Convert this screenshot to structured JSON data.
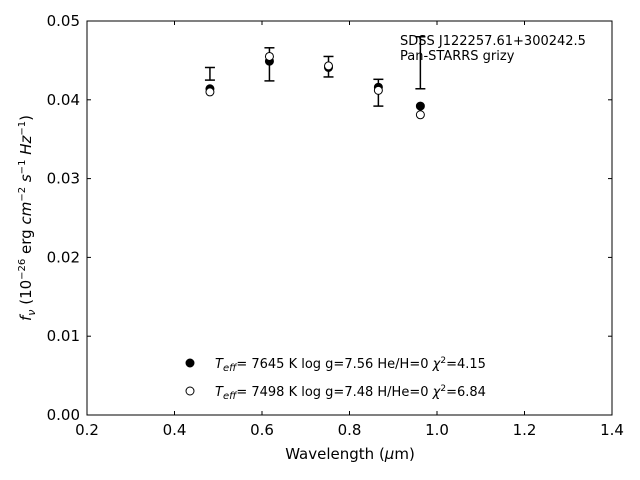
{
  "chart_data": {
    "type": "scatter",
    "title": "",
    "xlabel": "Wavelength (μm)",
    "ylabel": "f_ν (10^−26 erg cm^−2 s^−1 Hz^−1)",
    "xlim": [
      0.2,
      1.4
    ],
    "ylim": [
      0.0,
      0.05
    ],
    "xticks": [
      "0.2",
      "0.4",
      "0.6",
      "0.8",
      "1.0",
      "1.2",
      "1.4"
    ],
    "yticks": [
      "0.00",
      "0.01",
      "0.02",
      "0.03",
      "0.04",
      "0.05"
    ],
    "grid": false,
    "annotations": [
      "SDSS J122257.61+300242.5",
      "Pan-STARRS grizy"
    ],
    "observed": {
      "x": [
        0.481,
        0.617,
        0.752,
        0.866,
        0.962
      ],
      "y": [
        0.0433,
        0.0445,
        0.0442,
        0.0409,
        0.0447
      ],
      "yerr": [
        0.0008,
        0.0021,
        0.0013,
        0.0017,
        0.0033
      ]
    },
    "series": [
      {
        "name": "T_eff= 7645 K log g=7.56 He/H=0 χ²=4.15",
        "marker": "filled-circle",
        "teff": "7645",
        "logg": "7.56",
        "comp": "He/H=0",
        "chi2": "4.15",
        "x": [
          0.481,
          0.617,
          0.752,
          0.866,
          0.962
        ],
        "y": [
          0.0414,
          0.0449,
          0.0441,
          0.0416,
          0.0392
        ]
      },
      {
        "name": "T_eff= 7498 K log g=7.48 H/He=0 χ²=6.84",
        "marker": "open-circle",
        "teff": "7498",
        "logg": "7.48",
        "comp": "H/He=0",
        "chi2": "6.84",
        "x": [
          0.481,
          0.617,
          0.752,
          0.866,
          0.962
        ],
        "y": [
          0.041,
          0.0455,
          0.0443,
          0.0412,
          0.0381
        ]
      }
    ],
    "legend_position": "bottom-center",
    "colors": {
      "marker": "#000000",
      "axis": "#000000",
      "background": "#ffffff"
    }
  }
}
